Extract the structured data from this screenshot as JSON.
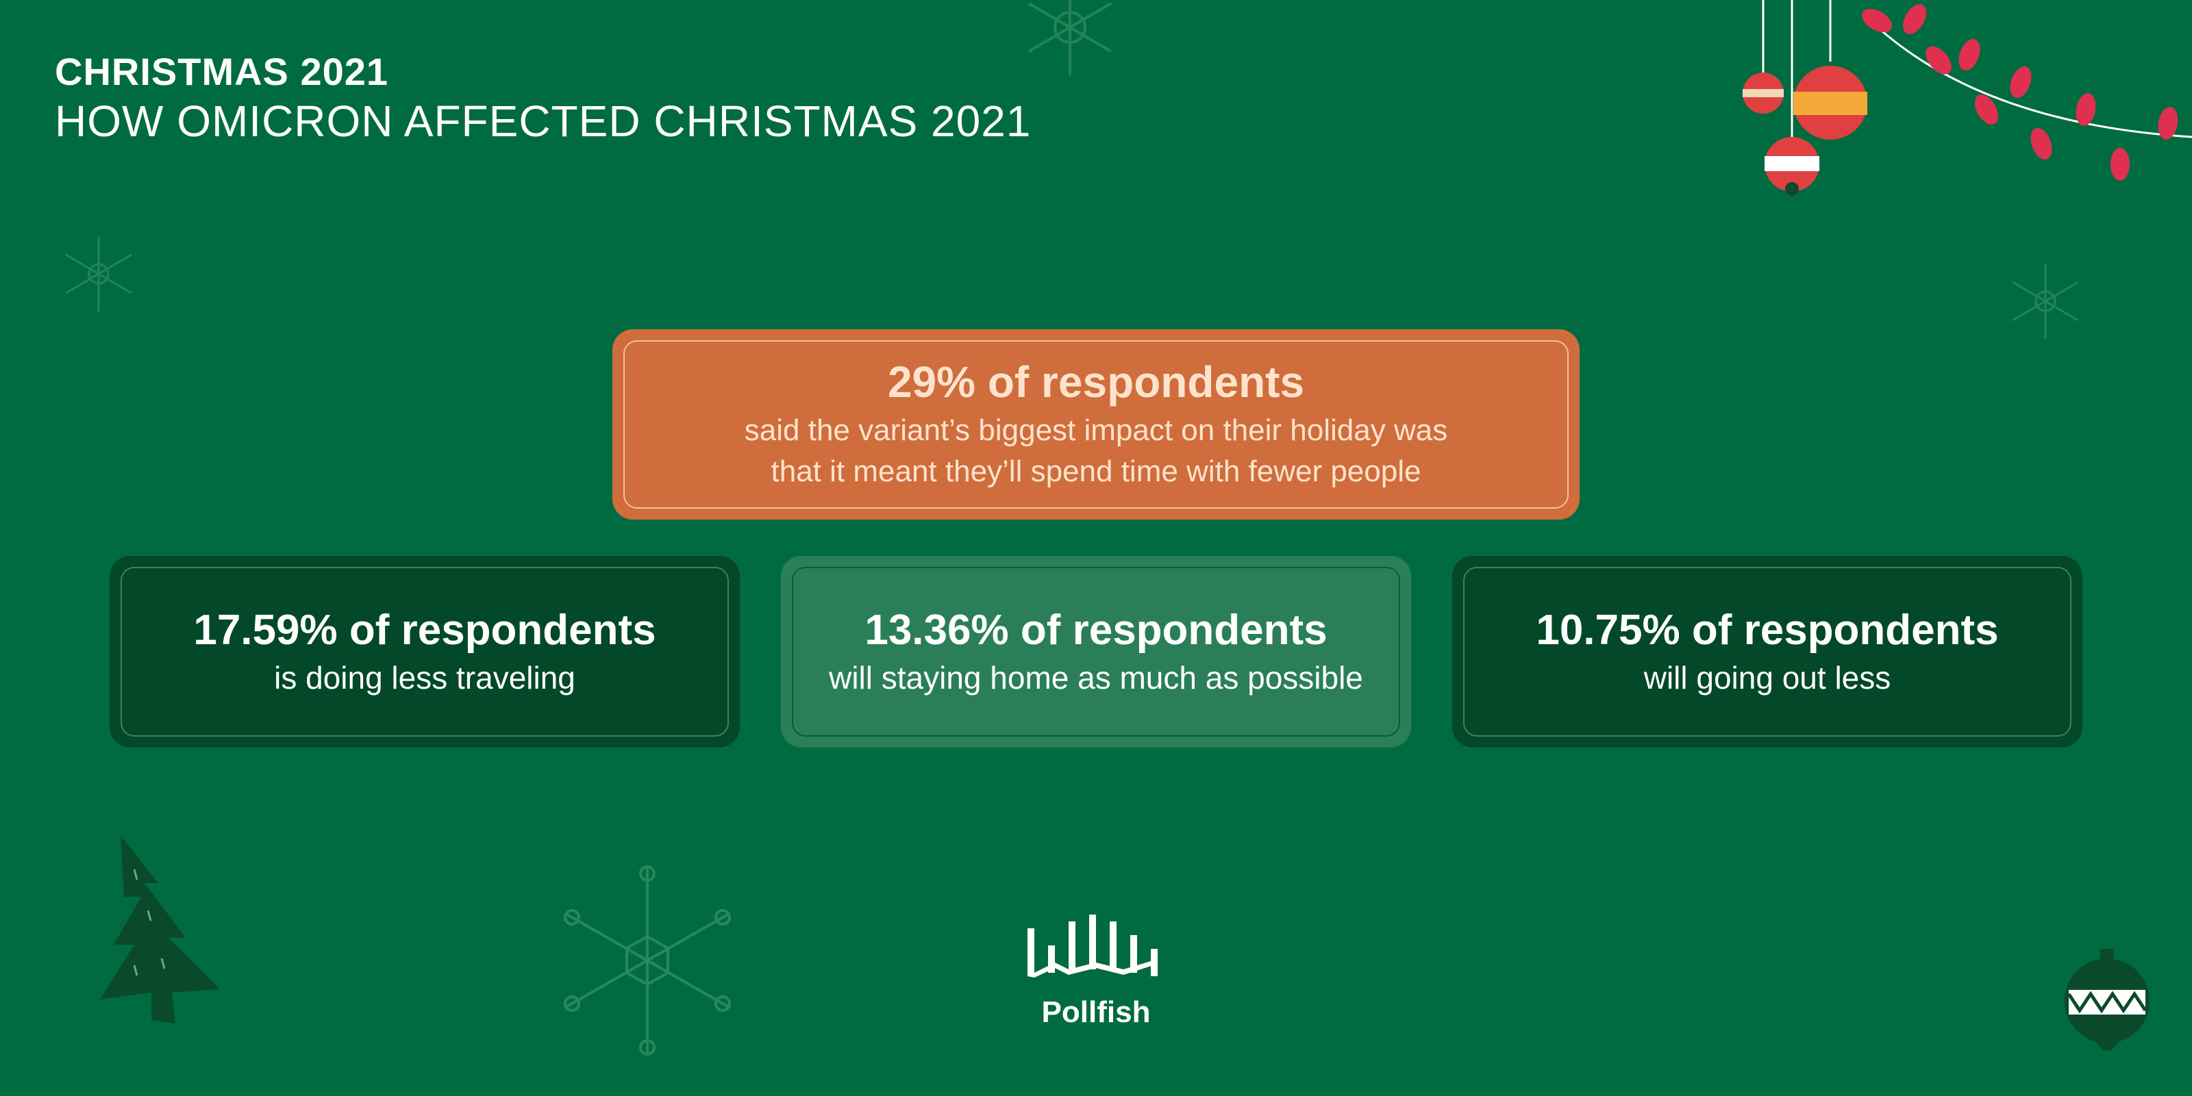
{
  "header": {
    "title": "CHRISTMAS 2021",
    "subtitle": "HOW OMICRON AFFECTED CHRISTMAS 2021"
  },
  "cards": {
    "top": {
      "headline": "29% of respondents",
      "line1": "said the variant’s biggest impact on their holiday was",
      "line2": "that it meant they’ll spend time with fewer people"
    },
    "left": {
      "headline": "17.59% of respondents",
      "text": "is doing less traveling"
    },
    "middle": {
      "headline": "13.36% of respondents",
      "text": "will staying home as much as possible"
    },
    "right": {
      "headline": "10.75% of respondents",
      "text": "will going out less"
    }
  },
  "brand": {
    "name": "Pollfish"
  },
  "colors": {
    "background": "#006b41",
    "accent_card": "#d06d3c",
    "dark_card": "#024829",
    "light_card": "#2a7f58"
  },
  "decorations": [
    "snowflake-icon",
    "christmas-tree-icon",
    "ornament-icon",
    "string-lights-icon",
    "hanging-bauble-icon"
  ]
}
